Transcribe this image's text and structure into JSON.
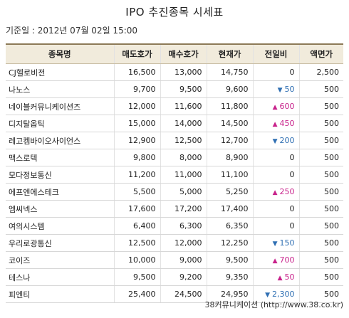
{
  "title": "IPO 추진종목 시세표",
  "base_date": "기준일 : 2012년 07월 02일 15:00",
  "columns": [
    "종목명",
    "매도호가",
    "매수호가",
    "현재가",
    "전일비",
    "액면가"
  ],
  "rows": [
    {
      "name": "CJ헬로비전",
      "ask": "16,500",
      "bid": "13,000",
      "price": "14,750",
      "change": "0",
      "dir": "none",
      "par": "2,500"
    },
    {
      "name": "나노스",
      "ask": "9,700",
      "bid": "9,500",
      "price": "9,600",
      "change": "50",
      "dir": "down",
      "par": "500"
    },
    {
      "name": "네이블커뮤니케이션즈",
      "ask": "12,000",
      "bid": "11,600",
      "price": "11,800",
      "change": "600",
      "dir": "up",
      "par": "500"
    },
    {
      "name": "디지탈옵틱",
      "ask": "15,000",
      "bid": "14,000",
      "price": "14,500",
      "change": "450",
      "dir": "up",
      "par": "500"
    },
    {
      "name": "레고켐바이오사이언스",
      "ask": "12,900",
      "bid": "12,500",
      "price": "12,700",
      "change": "200",
      "dir": "down",
      "par": "500"
    },
    {
      "name": "맥스로텍",
      "ask": "9,800",
      "bid": "8,000",
      "price": "8,900",
      "change": "0",
      "dir": "none",
      "par": "500"
    },
    {
      "name": "모다정보통신",
      "ask": "11,200",
      "bid": "11,000",
      "price": "11,100",
      "change": "0",
      "dir": "none",
      "par": "500"
    },
    {
      "name": "에프엔에스테크",
      "ask": "5,500",
      "bid": "5,000",
      "price": "5,250",
      "change": "250",
      "dir": "up",
      "par": "500"
    },
    {
      "name": "엠씨넥스",
      "ask": "17,600",
      "bid": "17,200",
      "price": "17,400",
      "change": "0",
      "dir": "none",
      "par": "500"
    },
    {
      "name": "여의시스템",
      "ask": "6,400",
      "bid": "6,300",
      "price": "6,350",
      "change": "0",
      "dir": "none",
      "par": "500"
    },
    {
      "name": "우리로광통신",
      "ask": "12,500",
      "bid": "12,000",
      "price": "12,250",
      "change": "150",
      "dir": "down",
      "par": "500"
    },
    {
      "name": "코이즈",
      "ask": "10,000",
      "bid": "9,000",
      "price": "9,500",
      "change": "700",
      "dir": "up",
      "par": "500"
    },
    {
      "name": "테스나",
      "ask": "9,500",
      "bid": "9,200",
      "price": "9,350",
      "change": "50",
      "dir": "up",
      "par": "500"
    },
    {
      "name": "피엔티",
      "ask": "25,400",
      "bid": "24,500",
      "price": "24,950",
      "change": "2,300",
      "dir": "down",
      "par": "500"
    }
  ],
  "arrows": {
    "up": "▲",
    "down": "▼"
  },
  "colors": {
    "up": "#c8228b",
    "down": "#2f6fb3",
    "header_bg": "#f1ebdc"
  },
  "footer": "38커뮤니케이션 (http://www.38.co.kr)"
}
